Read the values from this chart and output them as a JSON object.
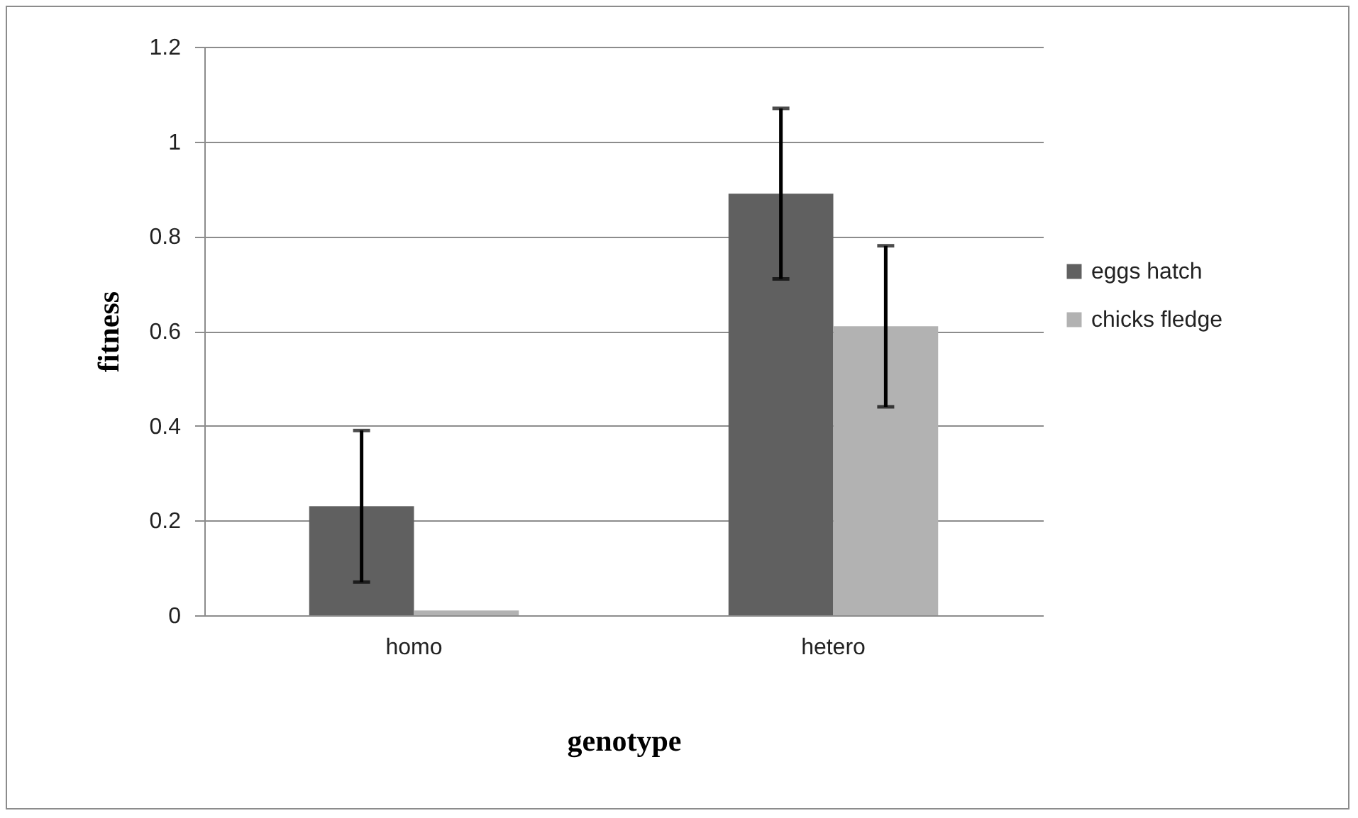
{
  "chart_data": {
    "type": "bar",
    "xlabel": "genotype",
    "ylabel": "fitness",
    "categories": [
      "homo",
      "hetero"
    ],
    "series": [
      {
        "name": "eggs hatch",
        "color": "#606060",
        "values": [
          0.23,
          0.89
        ],
        "errors": [
          [
            0.07,
            0.39
          ],
          [
            0.71,
            1.07
          ]
        ]
      },
      {
        "name": "chicks fledge",
        "color": "#b2b2b2",
        "values": [
          0.01,
          0.61
        ],
        "errors": [
          null,
          [
            0.44,
            0.78
          ]
        ]
      }
    ],
    "ylim": [
      0,
      1.2
    ],
    "yticks": [
      0,
      0.2,
      0.4,
      0.6,
      0.8,
      1,
      1.2
    ],
    "grid": "y",
    "legend": "right"
  }
}
